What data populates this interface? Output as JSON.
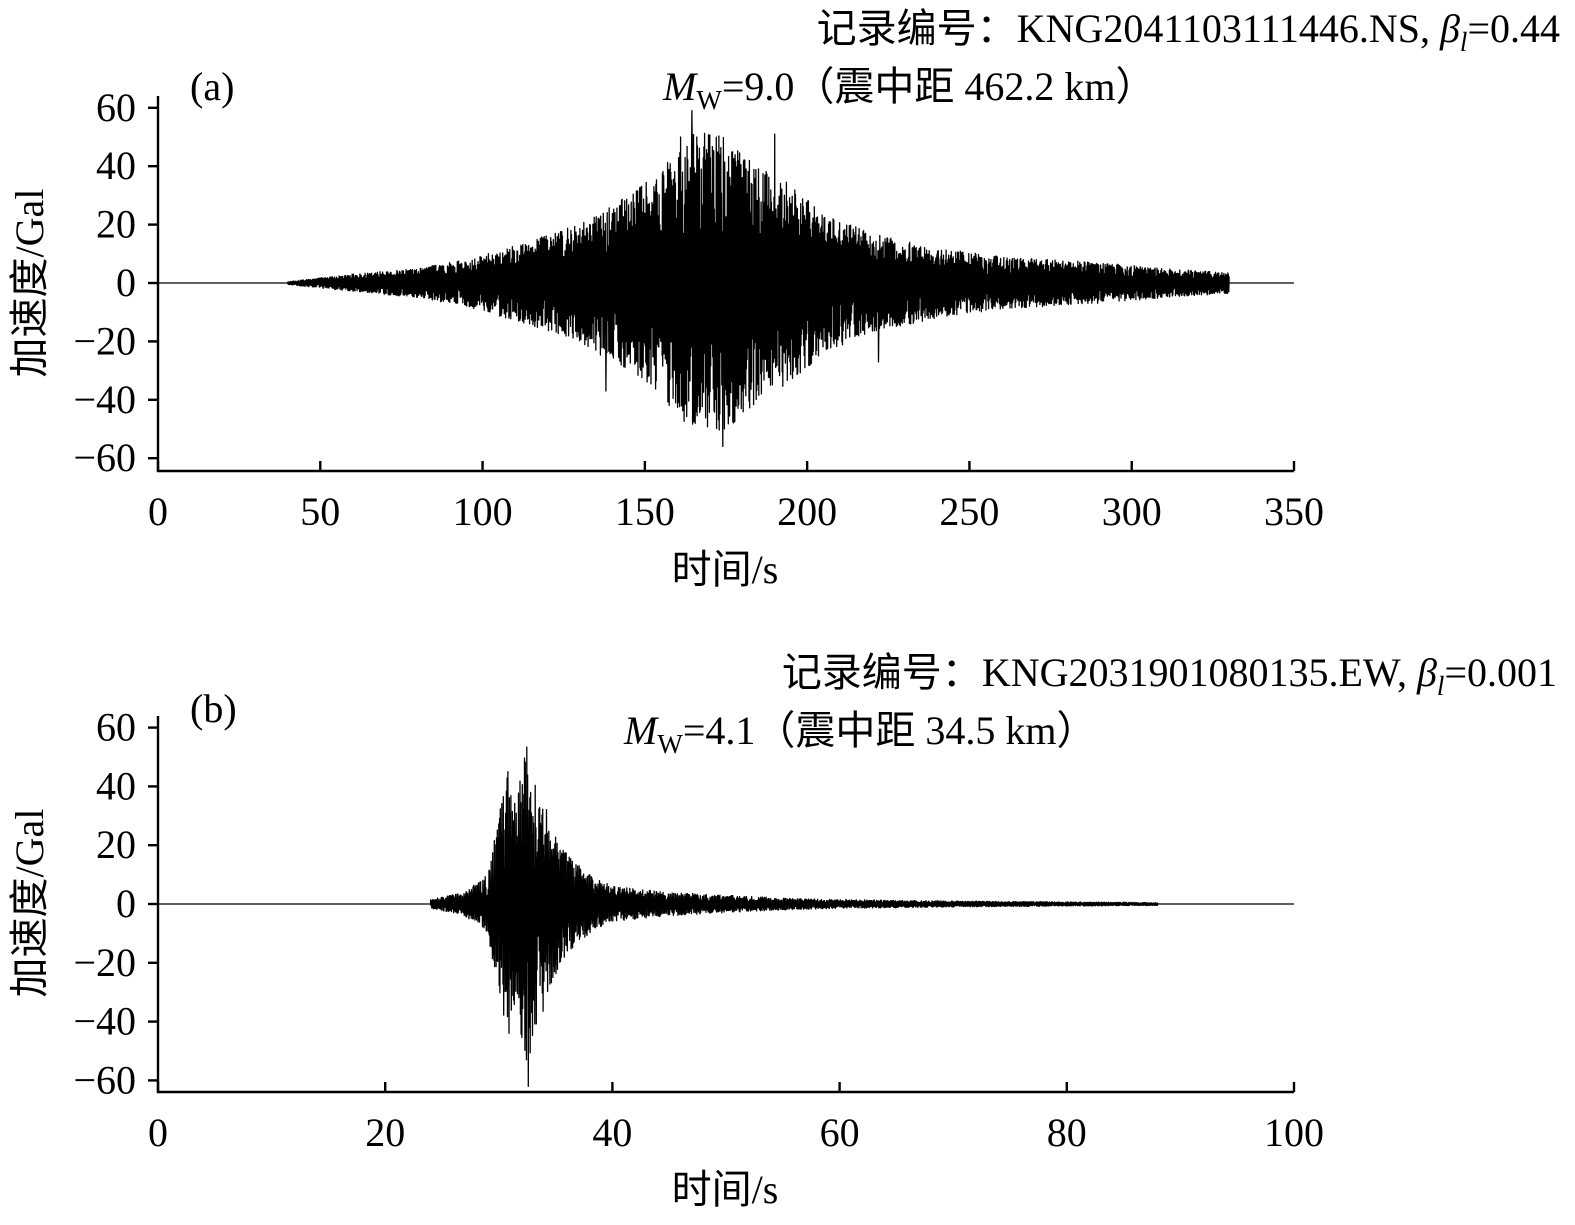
{
  "chart_data": [
    {
      "type": "line",
      "panel_label": "(a)",
      "record_label": "记录编号：",
      "record_id": "KNG2041103111446.NS, ",
      "beta_symbol": "β",
      "beta_subscript": "l",
      "beta_value": "=0.44",
      "magnitude_symbol": "M",
      "magnitude_subscript": "W",
      "magnitude_value": "=9.0（震中距 462.2 km）",
      "xlabel": "时间/s",
      "ylabel": "加速度/Gal",
      "xlim": [
        0,
        350
      ],
      "ylim": [
        -65,
        62
      ],
      "x_ticks": [
        0,
        50,
        100,
        150,
        200,
        250,
        300,
        350
      ],
      "x_tick_labels": [
        "0",
        "50",
        "100",
        "150",
        "200",
        "250",
        "300",
        "350"
      ],
      "y_ticks": [
        -60,
        -40,
        -20,
        0,
        20,
        40,
        60
      ],
      "y_tick_labels": [
        "−60",
        "−40",
        "−20",
        "0",
        "20",
        "40",
        "60"
      ],
      "series": [
        {
          "record_start_s": 0,
          "record_end_s": 350,
          "signal_start_s": 40,
          "signal_end_s": 330,
          "envelope": [
            [
              40,
              0.5
            ],
            [
              60,
              3
            ],
            [
              80,
              5
            ],
            [
              95,
              8
            ],
            [
              110,
              13
            ],
            [
              125,
              18
            ],
            [
              140,
              27
            ],
            [
              150,
              34
            ],
            [
              160,
              45
            ],
            [
              165,
              52
            ],
            [
              175,
              50
            ],
            [
              185,
              42
            ],
            [
              195,
              34
            ],
            [
              205,
              24
            ],
            [
              220,
              17
            ],
            [
              240,
              12
            ],
            [
              260,
              9
            ],
            [
              290,
              7
            ],
            [
              310,
              5
            ],
            [
              330,
              3.5
            ]
          ],
          "peaks": [
            {
              "x": 164.5,
              "y": 59
            },
            {
              "x": 174,
              "y": -56
            },
            {
              "x": 190,
              "y": 51
            },
            {
              "x": 161,
              "y": 50
            },
            {
              "x": 138,
              "y": -37
            },
            {
              "x": 222,
              "y": 26
            },
            {
              "x": 222,
              "y": -27
            }
          ],
          "min": -56,
          "max": 59
        }
      ]
    },
    {
      "type": "line",
      "panel_label": "(b)",
      "record_label": "记录编号：",
      "record_id": "KNG2031901080135.EW, ",
      "beta_symbol": "β",
      "beta_subscript": "l",
      "beta_value": "=0.001",
      "magnitude_symbol": "M",
      "magnitude_subscript": "W",
      "magnitude_value": "=4.1（震中距 34.5 km）",
      "xlabel": "时间/s",
      "ylabel": "加速度/Gal",
      "xlim": [
        0,
        100
      ],
      "ylim": [
        -65,
        62
      ],
      "x_ticks": [
        0,
        20,
        40,
        60,
        80,
        100
      ],
      "x_tick_labels": [
        "0",
        "20",
        "40",
        "60",
        "80",
        "100"
      ],
      "y_ticks": [
        -60,
        -40,
        -20,
        0,
        20,
        40,
        60
      ],
      "y_tick_labels": [
        "−60",
        "−40",
        "−20",
        "0",
        "20",
        "40",
        "60"
      ],
      "series": [
        {
          "record_start_s": 0,
          "record_end_s": 100,
          "signal_start_s": 24,
          "signal_end_s": 88,
          "envelope": [
            [
              24,
              1.5
            ],
            [
              27,
              4
            ],
            [
              29,
              10
            ],
            [
              30,
              30
            ],
            [
              30.8,
              45
            ],
            [
              31.5,
              35
            ],
            [
              32.5,
              55
            ],
            [
              33.3,
              45
            ],
            [
              34.5,
              28
            ],
            [
              36,
              17
            ],
            [
              38,
              10
            ],
            [
              40,
              6
            ],
            [
              45,
              4
            ],
            [
              50,
              3
            ],
            [
              55,
              2
            ],
            [
              60,
              1.5
            ],
            [
              70,
              1
            ],
            [
              88,
              0.5
            ]
          ],
          "peaks": [
            {
              "x": 30.8,
              "y": 45
            },
            {
              "x": 30.9,
              "y": -44
            },
            {
              "x": 32.6,
              "y": 56
            },
            {
              "x": 32.6,
              "y": -62
            }
          ],
          "min": -62,
          "max": 56
        }
      ]
    }
  ]
}
